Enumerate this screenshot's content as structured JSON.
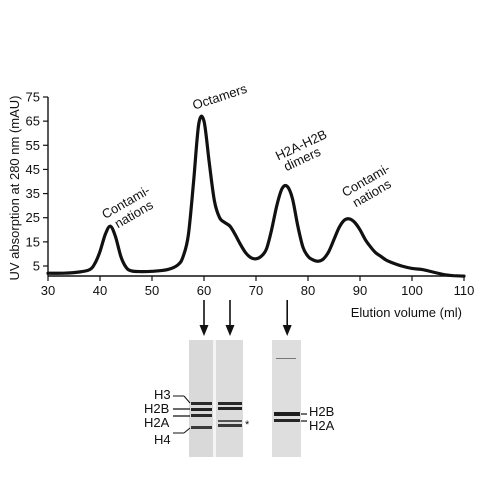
{
  "chart_data": {
    "type": "line",
    "title": "",
    "xlabel": "Elution volume (ml)",
    "ylabel": "UV absorption at 280 nm (mAU)",
    "x_ticks": [
      30,
      40,
      50,
      60,
      70,
      80,
      90,
      100,
      110
    ],
    "y_ticks": [
      5,
      15,
      25,
      35,
      45,
      55,
      65,
      75
    ],
    "xlim": [
      30,
      110
    ],
    "ylim": [
      0,
      77
    ],
    "grid": false,
    "series": [
      {
        "x": [
          30,
          33,
          36,
          38,
          39,
          40,
          41,
          42,
          43,
          44,
          45,
          46,
          48,
          50,
          53,
          55,
          56,
          57,
          58,
          59,
          60,
          61,
          62,
          63,
          64,
          65,
          66,
          67,
          68,
          69,
          70,
          71,
          72,
          73,
          74,
          75,
          76,
          77,
          78,
          79,
          80,
          81,
          82,
          83,
          84,
          85,
          86,
          87,
          88,
          89,
          90,
          91,
          92,
          93,
          94,
          95,
          96,
          98,
          100,
          102,
          104,
          106,
          108,
          110
        ],
        "y": [
          2,
          2,
          2.5,
          3.5,
          6,
          11,
          18,
          21.5,
          17,
          9,
          4.5,
          3,
          2.7,
          2.8,
          3.5,
          5.5,
          9,
          18,
          40,
          64,
          65,
          48,
          32,
          25,
          23,
          21.5,
          18,
          14,
          10.5,
          8.5,
          8,
          9,
          12,
          20,
          30,
          37,
          38,
          33,
          22,
          13,
          9,
          7.5,
          7,
          8,
          11,
          16,
          21,
          24,
          24.5,
          23,
          20,
          16,
          13,
          10.5,
          9,
          7.5,
          6.5,
          5,
          4,
          3.5,
          2.5,
          1.5,
          1,
          0.8
        ]
      }
    ],
    "annotations": [
      {
        "text": [
          "Contami-",
          "nations"
        ],
        "x": 42
      },
      {
        "text": [
          "Octamers"
        ],
        "x": 59
      },
      {
        "text": [
          "H2A-H2B",
          "dimers"
        ],
        "x": 76
      },
      {
        "text": [
          "Contami-",
          "nations"
        ],
        "x": 88
      }
    ],
    "arrows_x": [
      60,
      65,
      76
    ]
  },
  "gel": {
    "left_labels": [
      "H3",
      "H2B",
      "H2A",
      "H4"
    ],
    "right_labels": [
      "H2B",
      "H2A"
    ],
    "asterisk": "*"
  }
}
